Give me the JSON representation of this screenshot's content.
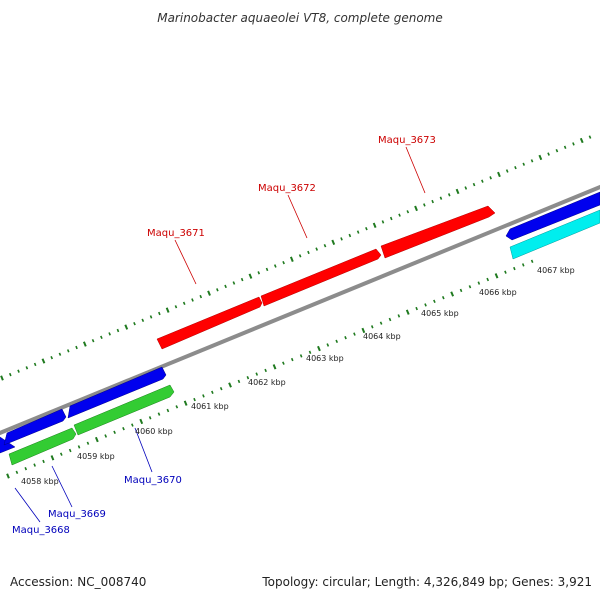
{
  "title": "Marinobacter aquaeolei VT8, complete genome",
  "footer": {
    "accession": "Accession: NC_008740",
    "topology": "Topology: circular; Length: 4,326,849 bp; Genes: 3,921"
  },
  "colors": {
    "backbone": "#8c8c8c",
    "tick": "#1f7a1f",
    "forward_label": "#cc0000",
    "reverse_label": "#0000bb",
    "red_gene": "#ff0000",
    "blue_gene": "#0000ee",
    "green_gene": "#33cc33",
    "cyan_gene": "#00eeee"
  },
  "kbp_labels": [
    "4058 kbp",
    "4059 kbp",
    "4060 kbp",
    "4061 kbp",
    "4062 kbp",
    "4063 kbp",
    "4064 kbp",
    "4065 kbp",
    "4066 kbp",
    "4067 kbp"
  ],
  "genes_forward": [
    {
      "label": "Maqu_3671",
      "color": "red"
    },
    {
      "label": "Maqu_3672",
      "color": "red"
    },
    {
      "label": "Maqu_3673",
      "color": "red"
    }
  ],
  "genes_reverse": [
    {
      "label": "Maqu_3668",
      "color": "blue"
    },
    {
      "label": "Maqu_3669",
      "color": "blue"
    },
    {
      "label": "Maqu_3670",
      "color": "blue"
    }
  ]
}
